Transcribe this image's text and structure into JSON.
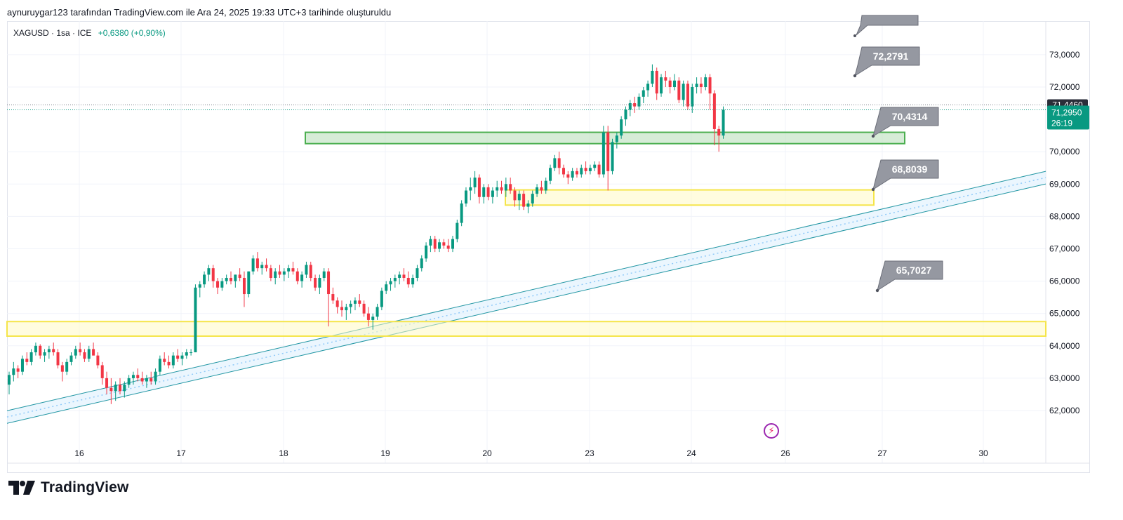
{
  "caption": "aynuruygar123 tarafından TradingView.com ile Ara 24, 2025 19:33 UTC+3 tarihinde oluşturuldu",
  "legend": {
    "symbol": "XAGUSD · 1sa · ICE",
    "change": "+0,6380 (+0,90%)"
  },
  "brand": "TradingView",
  "colors": {
    "up": "#089981",
    "down": "#f23645",
    "yellow_zone": "#f5e54a",
    "green_zone": "#4caf50",
    "channel": "#2196a3",
    "callout": "#9598a1",
    "last_price_bg": "#089981",
    "crosshair_price_bg": "#2a2e39"
  },
  "chart_data": {
    "type": "candlestick",
    "symbol": "XAGUSD",
    "interval": "1sa",
    "x_ticks": [
      "16",
      "17",
      "18",
      "19",
      "20",
      "23",
      "24",
      "26",
      "27",
      "30"
    ],
    "y_ticks": [
      "62,0000",
      "63,0000",
      "64,0000",
      "65,0000",
      "66,0000",
      "67,0000",
      "68,0000",
      "69,0000",
      "70,0000",
      "72,0000",
      "73,0000"
    ],
    "ylim": [
      61.2,
      73.6
    ],
    "last_price": "71,2950",
    "countdown": "26:19",
    "crosshair_price": "71,4460",
    "price_callouts": [
      "72,2791",
      "70,4314",
      "68,8039",
      "65,7027"
    ],
    "zones": [
      {
        "type": "support",
        "color": "yellow",
        "from": 64.3,
        "to": 64.75
      },
      {
        "type": "support",
        "color": "yellow",
        "from": 68.35,
        "to": 68.82
      },
      {
        "type": "support",
        "color": "green",
        "from": 70.25,
        "to": 70.6
      }
    ],
    "channel": {
      "start": [
        0,
        61.8
      ],
      "end": [
        1,
        69.2
      ]
    },
    "candles": [
      [
        62.8,
        63.2,
        62.5,
        63.1
      ],
      [
        63.1,
        63.5,
        62.9,
        63.3
      ],
      [
        63.3,
        63.4,
        63.0,
        63.2
      ],
      [
        63.2,
        63.7,
        63.1,
        63.6
      ],
      [
        63.6,
        63.8,
        63.4,
        63.5
      ],
      [
        63.5,
        63.9,
        63.4,
        63.8
      ],
      [
        63.8,
        64.1,
        63.7,
        64.0
      ],
      [
        64.0,
        64.05,
        63.6,
        63.7
      ],
      [
        63.7,
        63.9,
        63.5,
        63.8
      ],
      [
        63.8,
        64.0,
        63.6,
        63.9
      ],
      [
        63.9,
        64.1,
        63.7,
        63.8
      ],
      [
        63.8,
        63.9,
        63.3,
        63.4
      ],
      [
        63.4,
        63.5,
        62.9,
        63.2
      ],
      [
        63.2,
        63.6,
        63.1,
        63.5
      ],
      [
        63.5,
        63.8,
        63.4,
        63.7
      ],
      [
        63.7,
        64.0,
        63.6,
        63.9
      ],
      [
        63.9,
        64.1,
        63.7,
        63.8
      ],
      [
        63.8,
        63.9,
        63.5,
        63.6
      ],
      [
        63.6,
        64.0,
        63.5,
        63.9
      ],
      [
        63.9,
        64.1,
        63.7,
        63.7
      ],
      [
        63.7,
        63.8,
        63.3,
        63.4
      ],
      [
        63.4,
        63.5,
        62.8,
        63.0
      ],
      [
        63.0,
        63.2,
        62.5,
        62.7
      ],
      [
        62.7,
        63.0,
        62.2,
        62.6
      ],
      [
        62.6,
        62.9,
        62.3,
        62.8
      ],
      [
        62.8,
        63.0,
        62.5,
        62.6
      ],
      [
        62.6,
        62.9,
        62.4,
        62.8
      ],
      [
        62.8,
        63.1,
        62.7,
        63.0
      ],
      [
        63.0,
        63.2,
        62.8,
        63.1
      ],
      [
        63.1,
        63.3,
        62.9,
        63.0
      ],
      [
        63.0,
        63.2,
        62.8,
        62.9
      ],
      [
        62.9,
        63.1,
        62.7,
        63.0
      ],
      [
        63.0,
        63.2,
        62.8,
        62.9
      ],
      [
        62.9,
        63.3,
        62.8,
        63.2
      ],
      [
        63.2,
        63.7,
        63.1,
        63.6
      ],
      [
        63.6,
        63.8,
        63.4,
        63.5
      ],
      [
        63.5,
        63.7,
        63.3,
        63.4
      ],
      [
        63.4,
        63.8,
        63.3,
        63.7
      ],
      [
        63.7,
        63.9,
        63.5,
        63.6
      ],
      [
        63.6,
        63.8,
        63.4,
        63.7
      ],
      [
        63.7,
        63.9,
        63.6,
        63.8
      ],
      [
        63.8,
        63.9,
        63.7,
        63.8
      ],
      [
        63.8,
        65.9,
        63.8,
        65.8
      ],
      [
        65.8,
        66.0,
        65.5,
        65.9
      ],
      [
        65.9,
        66.3,
        65.8,
        66.2
      ],
      [
        66.2,
        66.5,
        66.0,
        66.4
      ],
      [
        66.4,
        66.5,
        65.8,
        66.0
      ],
      [
        66.0,
        66.1,
        65.6,
        65.8
      ],
      [
        65.8,
        66.1,
        65.7,
        66.0
      ],
      [
        66.0,
        66.2,
        65.9,
        66.1
      ],
      [
        66.1,
        66.3,
        65.9,
        66.0
      ],
      [
        66.0,
        66.2,
        65.8,
        66.2
      ],
      [
        66.2,
        66.4,
        66.0,
        66.1
      ],
      [
        66.1,
        66.3,
        65.2,
        65.6
      ],
      [
        65.6,
        66.3,
        65.5,
        66.3
      ],
      [
        66.3,
        66.8,
        66.2,
        66.7
      ],
      [
        66.7,
        66.9,
        66.3,
        66.4
      ],
      [
        66.4,
        66.6,
        66.2,
        66.5
      ],
      [
        66.5,
        66.7,
        66.3,
        66.4
      ],
      [
        66.4,
        66.5,
        66.0,
        66.1
      ],
      [
        66.1,
        66.4,
        65.9,
        66.3
      ],
      [
        66.3,
        66.5,
        66.1,
        66.2
      ],
      [
        66.2,
        66.4,
        66.0,
        66.3
      ],
      [
        66.3,
        66.5,
        66.1,
        66.4
      ],
      [
        66.4,
        66.6,
        66.2,
        66.3
      ],
      [
        66.3,
        66.4,
        65.9,
        66.0
      ],
      [
        66.0,
        66.3,
        65.8,
        66.2
      ],
      [
        66.2,
        66.6,
        66.1,
        66.5
      ],
      [
        66.5,
        66.6,
        66.0,
        66.1
      ],
      [
        66.1,
        66.2,
        65.7,
        65.8
      ],
      [
        65.8,
        66.2,
        65.6,
        66.1
      ],
      [
        66.1,
        66.4,
        66.0,
        66.3
      ],
      [
        66.3,
        66.4,
        64.6,
        65.6
      ],
      [
        65.6,
        65.8,
        65.3,
        65.4
      ],
      [
        65.4,
        65.5,
        65.0,
        65.2
      ],
      [
        65.2,
        65.4,
        64.9,
        65.1
      ],
      [
        65.1,
        65.3,
        64.8,
        65.2
      ],
      [
        65.2,
        65.4,
        65.0,
        65.3
      ],
      [
        65.3,
        65.5,
        65.1,
        65.4
      ],
      [
        65.4,
        65.6,
        65.2,
        65.3
      ],
      [
        65.3,
        65.4,
        64.9,
        65.0
      ],
      [
        65.0,
        65.2,
        64.6,
        64.8
      ],
      [
        64.8,
        65.0,
        64.5,
        64.9
      ],
      [
        64.9,
        65.3,
        64.8,
        65.2
      ],
      [
        65.2,
        65.8,
        65.1,
        65.7
      ],
      [
        65.7,
        66.0,
        65.6,
        65.9
      ],
      [
        65.9,
        66.1,
        65.7,
        66.0
      ],
      [
        66.0,
        66.2,
        65.8,
        66.1
      ],
      [
        66.1,
        66.3,
        65.9,
        66.2
      ],
      [
        66.2,
        66.4,
        66.0,
        66.1
      ],
      [
        66.1,
        66.3,
        65.8,
        65.9
      ],
      [
        65.9,
        66.2,
        65.8,
        66.1
      ],
      [
        66.1,
        66.5,
        66.0,
        66.4
      ],
      [
        66.4,
        66.8,
        66.3,
        66.7
      ],
      [
        66.7,
        67.2,
        66.6,
        67.1
      ],
      [
        67.1,
        67.4,
        66.9,
        67.3
      ],
      [
        67.3,
        67.4,
        66.9,
        67.0
      ],
      [
        67.0,
        67.3,
        66.9,
        67.2
      ],
      [
        67.2,
        67.3,
        67.0,
        67.1
      ],
      [
        67.1,
        67.3,
        66.9,
        67.0
      ],
      [
        67.0,
        67.4,
        66.9,
        67.3
      ],
      [
        67.3,
        67.9,
        67.2,
        67.8
      ],
      [
        67.8,
        68.5,
        67.7,
        68.4
      ],
      [
        68.4,
        68.9,
        68.3,
        68.8
      ],
      [
        68.8,
        69.2,
        68.5,
        68.9
      ],
      [
        68.9,
        69.4,
        68.7,
        69.2
      ],
      [
        69.2,
        69.3,
        68.4,
        68.6
      ],
      [
        68.6,
        69.0,
        68.4,
        68.9
      ],
      [
        68.9,
        69.0,
        68.5,
        68.6
      ],
      [
        68.6,
        68.9,
        68.4,
        68.8
      ],
      [
        68.8,
        69.1,
        68.6,
        68.9
      ],
      [
        68.9,
        69.1,
        68.7,
        68.8
      ],
      [
        68.8,
        69.2,
        68.6,
        69.0
      ],
      [
        69.0,
        69.2,
        68.7,
        68.8
      ],
      [
        68.8,
        68.9,
        68.3,
        68.5
      ],
      [
        68.5,
        68.8,
        68.2,
        68.7
      ],
      [
        68.7,
        68.8,
        68.2,
        68.3
      ],
      [
        68.3,
        68.5,
        68.1,
        68.4
      ],
      [
        68.4,
        68.8,
        68.3,
        68.7
      ],
      [
        68.7,
        69.0,
        68.6,
        68.9
      ],
      [
        68.9,
        69.1,
        68.7,
        68.8
      ],
      [
        68.8,
        69.2,
        68.7,
        69.1
      ],
      [
        69.1,
        69.6,
        69.0,
        69.5
      ],
      [
        69.5,
        69.9,
        69.4,
        69.8
      ],
      [
        69.8,
        70.0,
        69.3,
        69.5
      ],
      [
        69.5,
        69.6,
        69.2,
        69.3
      ],
      [
        69.3,
        69.4,
        69.0,
        69.2
      ],
      [
        69.2,
        69.5,
        69.1,
        69.4
      ],
      [
        69.4,
        69.5,
        69.2,
        69.3
      ],
      [
        69.3,
        69.6,
        69.2,
        69.5
      ],
      [
        69.5,
        69.7,
        69.3,
        69.4
      ],
      [
        69.4,
        69.6,
        69.3,
        69.5
      ],
      [
        69.5,
        69.7,
        69.4,
        69.6
      ],
      [
        69.6,
        69.7,
        69.2,
        69.3
      ],
      [
        69.3,
        70.8,
        69.2,
        70.6
      ],
      [
        70.6,
        70.8,
        68.8,
        69.4
      ],
      [
        69.4,
        70.4,
        69.3,
        70.3
      ],
      [
        70.3,
        70.6,
        70.1,
        70.5
      ],
      [
        70.5,
        71.1,
        70.4,
        71.0
      ],
      [
        71.0,
        71.4,
        70.8,
        71.3
      ],
      [
        71.3,
        71.6,
        71.1,
        71.5
      ],
      [
        71.5,
        71.7,
        71.2,
        71.4
      ],
      [
        71.4,
        71.8,
        71.3,
        71.7
      ],
      [
        71.7,
        72.0,
        71.5,
        71.9
      ],
      [
        71.9,
        72.2,
        71.7,
        72.1
      ],
      [
        72.1,
        72.7,
        72.0,
        72.5
      ],
      [
        72.5,
        72.6,
        71.6,
        71.8
      ],
      [
        71.8,
        72.4,
        71.7,
        72.3
      ],
      [
        72.3,
        72.5,
        72.0,
        72.2
      ],
      [
        72.2,
        72.3,
        71.8,
        72.0
      ],
      [
        72.0,
        72.4,
        71.9,
        72.2
      ],
      [
        72.2,
        72.3,
        71.5,
        71.6
      ],
      [
        71.6,
        72.2,
        71.4,
        72.1
      ],
      [
        72.1,
        72.2,
        71.3,
        71.4
      ],
      [
        71.4,
        72.1,
        71.2,
        72.0
      ],
      [
        72.0,
        72.3,
        71.8,
        72.1
      ],
      [
        72.1,
        72.3,
        71.8,
        72.0
      ],
      [
        72.0,
        72.4,
        71.9,
        72.3
      ],
      [
        72.3,
        72.4,
        71.3,
        71.8
      ],
      [
        71.8,
        71.9,
        70.2,
        70.7
      ],
      [
        70.7,
        70.8,
        70.0,
        70.5
      ],
      [
        70.5,
        71.4,
        70.4,
        71.3
      ]
    ]
  }
}
